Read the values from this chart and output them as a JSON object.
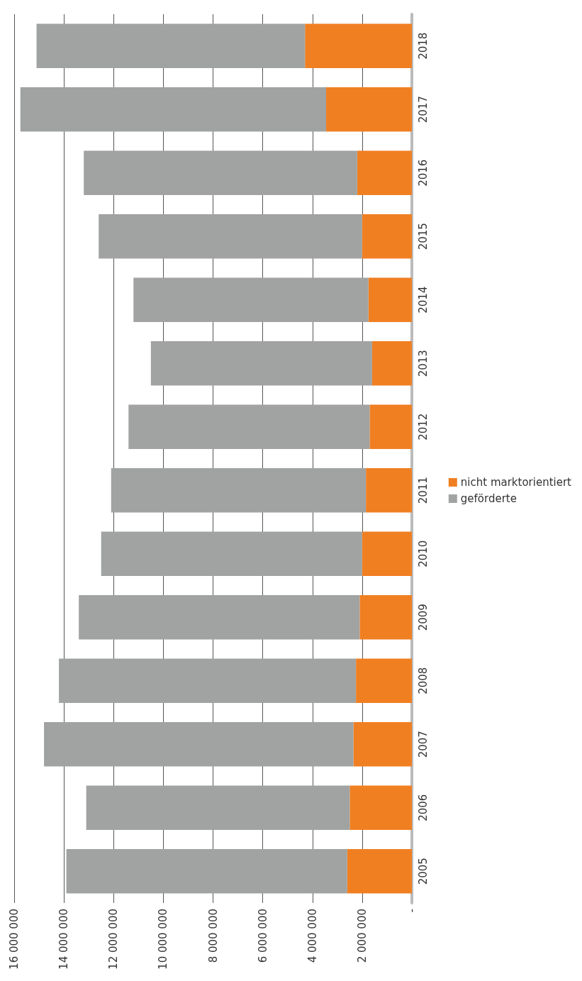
{
  "chart_data": {
    "type": "bar",
    "stacked": true,
    "orientation": "horizontal",
    "categories": [
      "2018",
      "2017",
      "2016",
      "2015",
      "2014",
      "2013",
      "2012",
      "2011",
      "2010",
      "2009",
      "2008",
      "2007",
      "2006",
      "2005"
    ],
    "series": [
      {
        "name": "nicht marktorientiert",
        "color": "#f07f22",
        "values": [
          4300000,
          3450000,
          2200000,
          2000000,
          1750000,
          1600000,
          1700000,
          1850000,
          2000000,
          2100000,
          2250000,
          2350000,
          2500000,
          2600000
        ]
      },
      {
        "name": "geförderte",
        "color": "#a0a3a2",
        "values": [
          10800000,
          12300000,
          11000000,
          10600000,
          9450000,
          8900000,
          9700000,
          10250000,
          10500000,
          11300000,
          11950000,
          12450000,
          10600000,
          11300000
        ]
      }
    ],
    "xlim": [
      16000000,
      0
    ],
    "xticks": [
      {
        "value": 16000000,
        "label": "16 000 000"
      },
      {
        "value": 14000000,
        "label": "14 000 000"
      },
      {
        "value": 12000000,
        "label": "12 000 000"
      },
      {
        "value": 10000000,
        "label": "10 000 000"
      },
      {
        "value": 8000000,
        "label": "8 000 000"
      },
      {
        "value": 6000000,
        "label": "6 000 000"
      },
      {
        "value": 4000000,
        "label": "4 000 000"
      },
      {
        "value": 2000000,
        "label": "2 000 000"
      },
      {
        "value": 0,
        "label": "-"
      }
    ],
    "grid": "x",
    "legend": "right"
  }
}
